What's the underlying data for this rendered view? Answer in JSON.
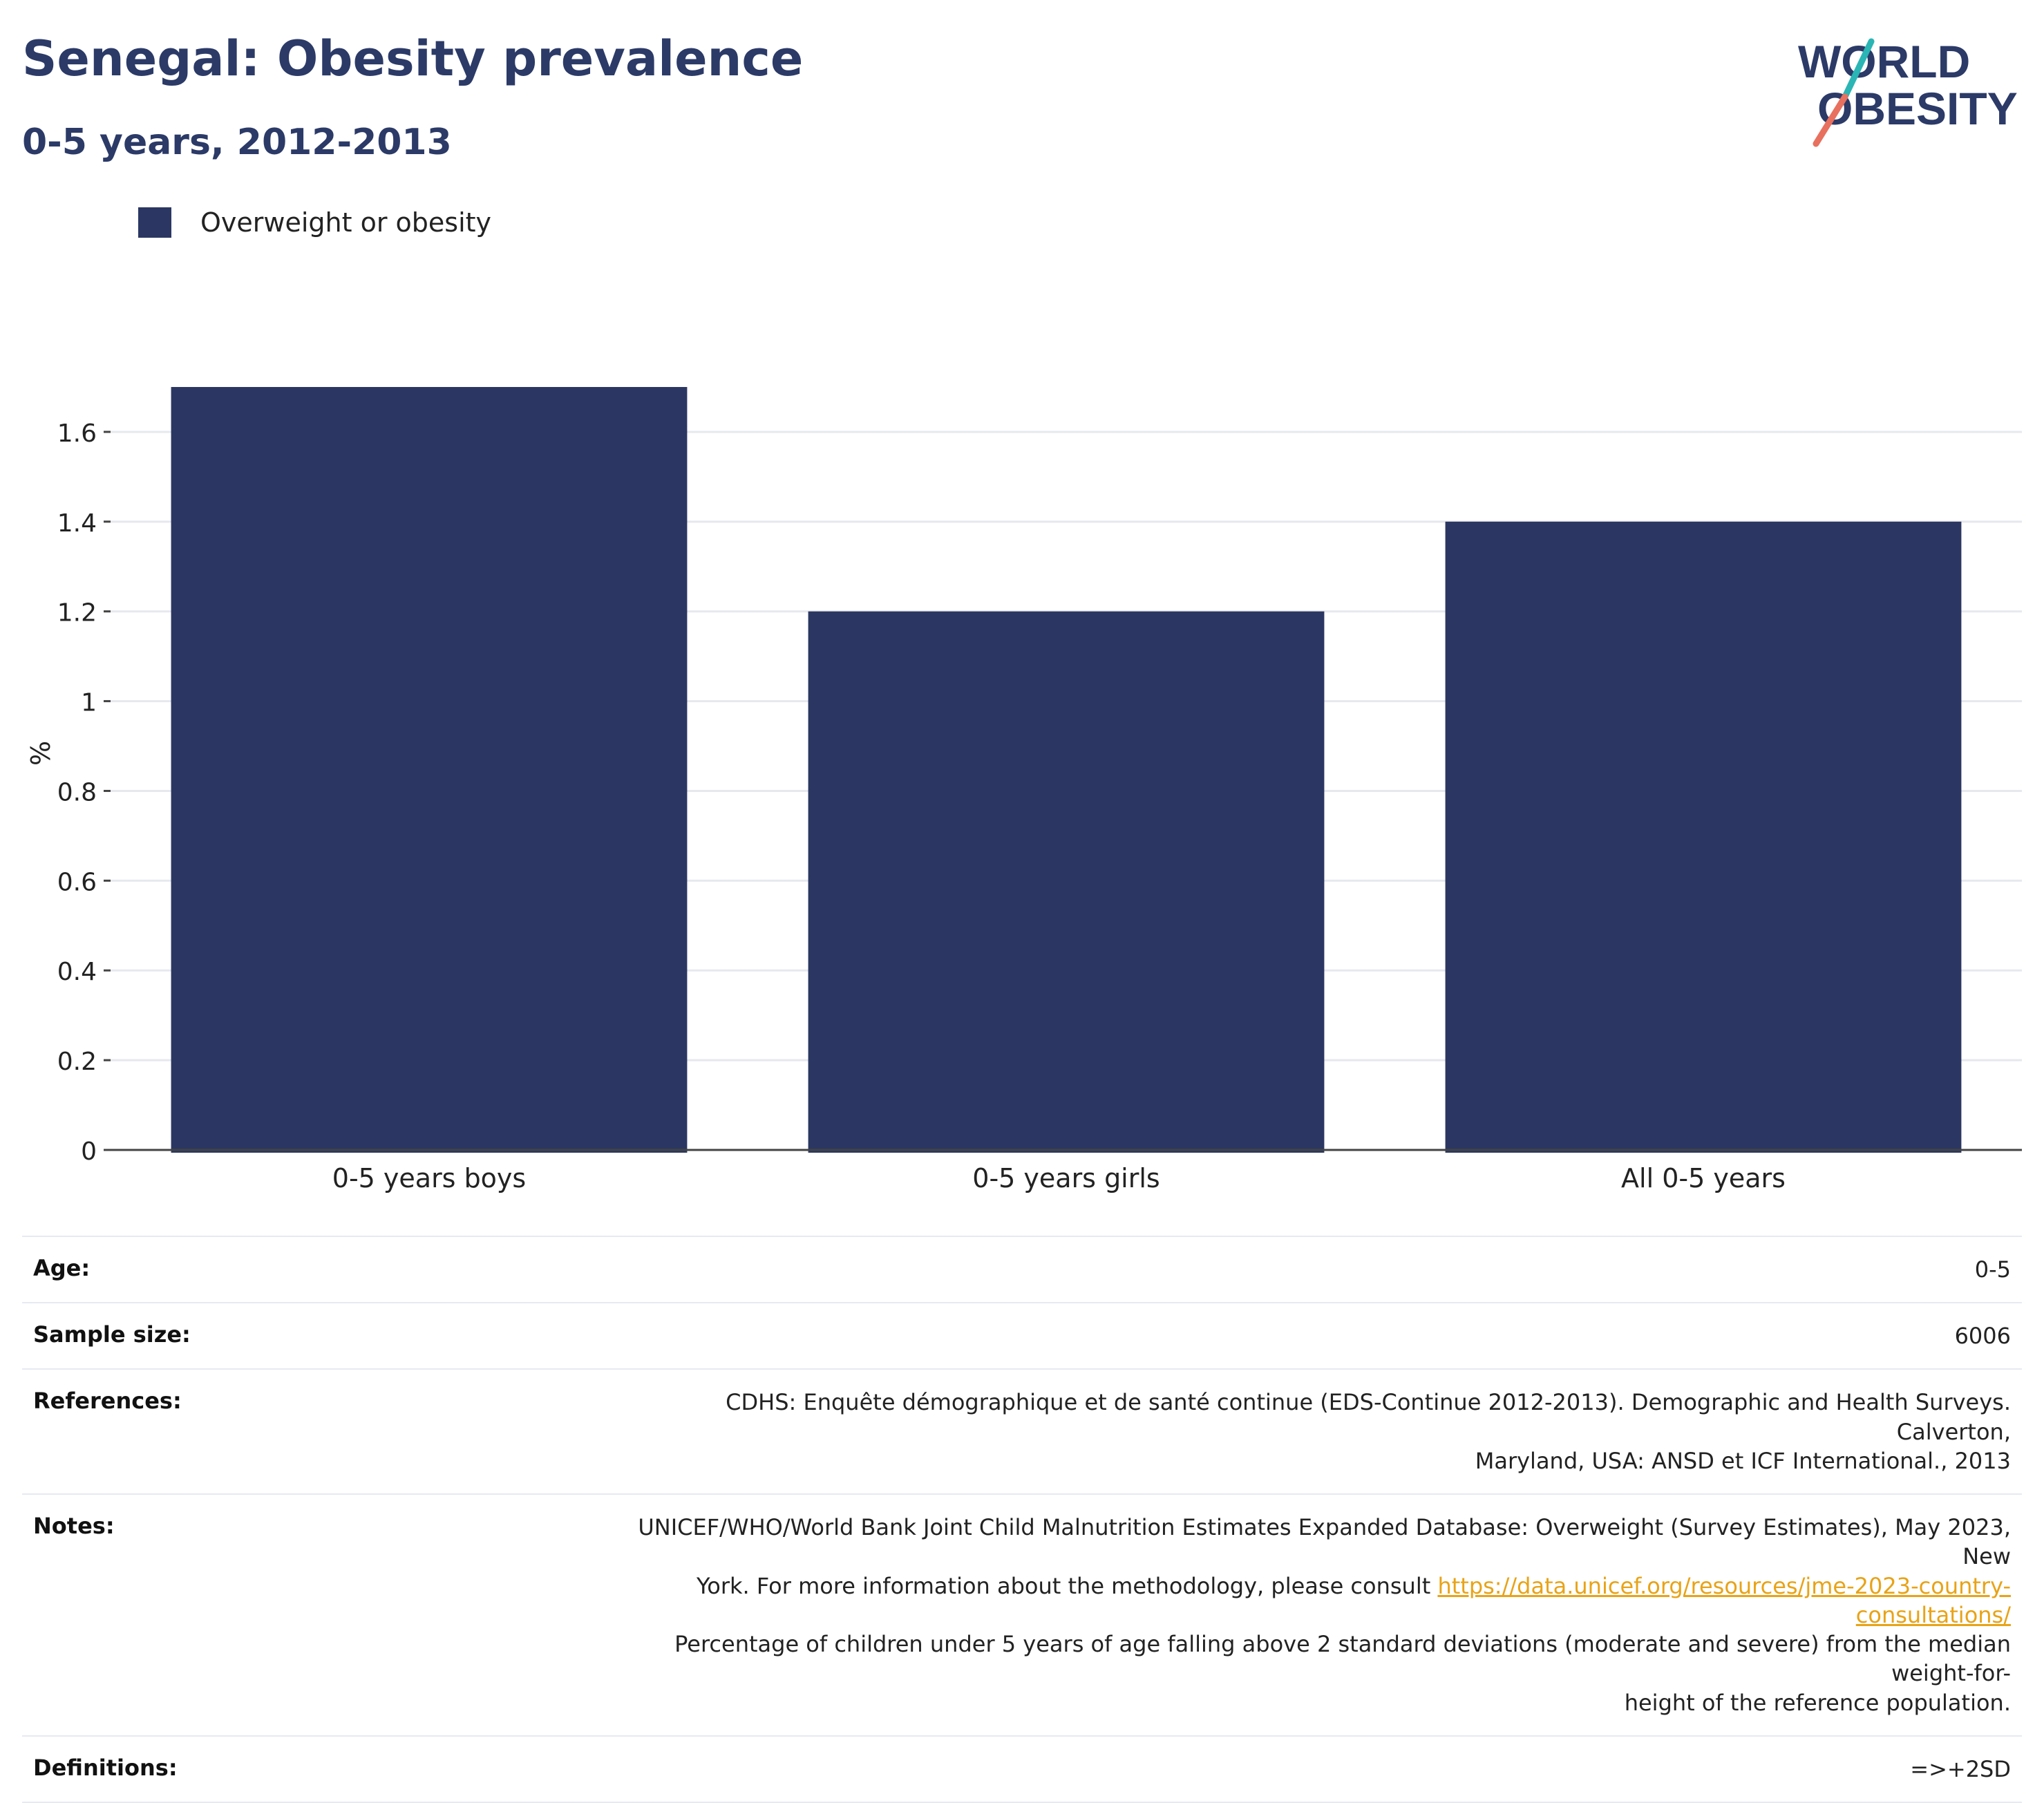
{
  "header": {
    "title": "Senegal: Obesity prevalence",
    "subtitle": "0-5 years, 2012-2013"
  },
  "logo": {
    "line1": "WORLD",
    "line2": "OBESITY",
    "slash_colors": [
      "#2bb5b5",
      "#e8705e"
    ],
    "text_color": "#2b3a67"
  },
  "legend": {
    "label": "Overweight or obesity",
    "color": "#2b3762"
  },
  "chart_data": {
    "type": "bar",
    "categories": [
      "0-5 years boys",
      "0-5 years girls",
      "All 0-5 years"
    ],
    "series": [
      {
        "name": "Overweight or obesity",
        "values": [
          1.7,
          1.2,
          1.4
        ],
        "color": "#2b3762"
      }
    ],
    "ylabel": "%",
    "xlabel": "",
    "ylim": [
      0,
      1.7
    ],
    "yticks": [
      0,
      0.2,
      0.4,
      0.6,
      0.8,
      1,
      1.2,
      1.4,
      1.6
    ],
    "ytick_labels": [
      "0",
      "0.2",
      "0.4",
      "0.6",
      "0.8",
      "1",
      "1.2",
      "1.4",
      "1.6"
    ],
    "grid": true,
    "legend_position": "top-left"
  },
  "meta": {
    "age_label": "Age:",
    "age_value": "0-5",
    "sample_label": "Sample size:",
    "sample_value": "6006",
    "references_label": "References:",
    "references_value_1": "CDHS: Enquête démographique et de santé continue (EDS-Continue 2012-2013). Demographic and Health Surveys. Calverton,",
    "references_value_2": "Maryland, USA: ANSD et ICF International., 2013",
    "notes_label": "Notes:",
    "notes_value_1": "UNICEF/WHO/World Bank Joint Child Malnutrition Estimates Expanded Database: Overweight (Survey Estimates), May 2023, New",
    "notes_value_2": "York. For more information about the methodology, please consult",
    "notes_link": "https://data.unicef.org/resources/jme-2023-country-consultations/",
    "notes_value_3": "Percentage of children under 5 years of age falling above 2 standard deviations (moderate and severe) from the median weight-for-",
    "notes_value_4": "height of the reference population.",
    "definitions_label": "Definitions:",
    "definitions_value": "=>+2SD"
  }
}
